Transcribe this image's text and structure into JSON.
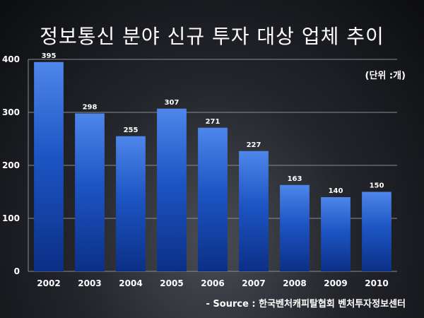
{
  "chart_data": {
    "type": "bar",
    "title": "정보통신 분야 신규 투자 대상 업체 추이",
    "unit_label": "(단위 :개)",
    "source": "- Source :  한국벤처캐피탈협회 벤처투자정보센터",
    "categories": [
      "2002",
      "2003",
      "2004",
      "2005",
      "2006",
      "2007",
      "2008",
      "2009",
      "2010"
    ],
    "values": [
      395,
      298,
      255,
      307,
      271,
      227,
      163,
      140,
      150
    ],
    "ylim": [
      0,
      400
    ],
    "yticks": [
      "0",
      "100",
      "200",
      "300",
      "400"
    ],
    "xlabel": "",
    "ylabel": "",
    "grid": true,
    "legend": "none",
    "colors": {
      "bar_top": "#4f86ea",
      "bar_mid": "#1d55c4",
      "bar_bottom": "#0b2f86",
      "grid": "#8a8c92",
      "text": "#ffffff"
    }
  }
}
